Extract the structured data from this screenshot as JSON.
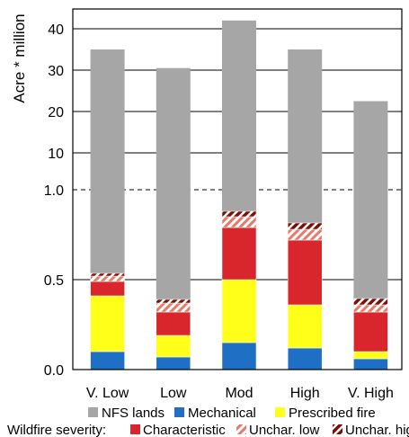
{
  "chart_data": {
    "type": "bar",
    "ylabel": "Acre * million",
    "categories": [
      "V. Low",
      "Low",
      "Mod",
      "High",
      "V. High"
    ],
    "axis_note": "broken y-axis: linear 0.0–1.0 (lower), 10–40 (upper)",
    "lower_ticks": [
      "0.0",
      "0.5",
      "1.0"
    ],
    "upper_ticks": [
      "10",
      "20",
      "30",
      "40"
    ],
    "background_series": {
      "name": "NFS lands",
      "color": "#a6a6a6",
      "values": [
        35,
        30.5,
        42,
        35,
        22.5
      ]
    },
    "stacked_series": [
      {
        "name": "Mechanical",
        "color": "#1f6fc5",
        "pattern": "solid",
        "values": [
          0.1,
          0.07,
          0.15,
          0.12,
          0.06
        ]
      },
      {
        "name": "Prescribed fire",
        "color": "#ffff1a",
        "pattern": "solid",
        "values": [
          0.31,
          0.12,
          0.35,
          0.24,
          0.04
        ]
      },
      {
        "name": "Characteristic",
        "color": "#d9262c",
        "pattern": "solid",
        "values": [
          0.08,
          0.13,
          0.29,
          0.36,
          0.22
        ]
      },
      {
        "name": "Unchar. low",
        "color": "#e87a6a",
        "pattern": "hatch-light",
        "values": [
          0.03,
          0.05,
          0.06,
          0.06,
          0.04
        ]
      },
      {
        "name": "Unchar. high",
        "color": "#8b1a10",
        "pattern": "hatch-dark",
        "values": [
          0.015,
          0.02,
          0.03,
          0.035,
          0.035
        ]
      }
    ],
    "grid": true,
    "legend": {
      "row1": [
        "NFS lands",
        "Mechanical",
        "Prescribed fire"
      ],
      "row2_prefix": "Wildfire severity:",
      "row2": [
        "Characteristic",
        "Unchar. low",
        "Unchar. high"
      ]
    }
  }
}
